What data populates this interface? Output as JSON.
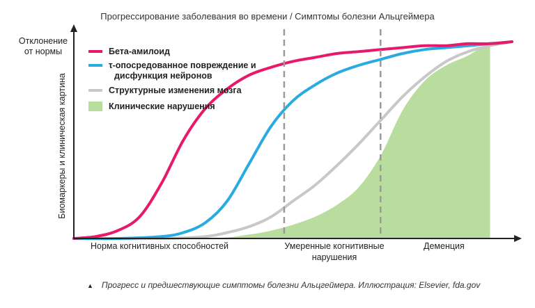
{
  "chart_data": {
    "type": "line",
    "title": "Прогрессирование заболевания во времени / Симптомы болезни Альцгеймера",
    "y_top_label": "Отклонение от нормы",
    "ylabel": "Биомаркеры и клиническая картина",
    "x_stage_labels": [
      "Норма когнитивных способностей",
      "Умеренные когнитивные нарушения",
      "Деменция"
    ],
    "xlim": [
      0,
      100
    ],
    "ylim": [
      0,
      100
    ],
    "stage_boundaries": [
      48,
      70
    ],
    "grid": false,
    "legend_position": "top-left",
    "series": [
      {
        "name": "Бета-амилоид",
        "kind": "line",
        "color": "#e8196b",
        "x": [
          0,
          5,
          10,
          15,
          20,
          25,
          30,
          35,
          40,
          45,
          50,
          55,
          60,
          65,
          70,
          75,
          80,
          85,
          90,
          95,
          100
        ],
        "y": [
          0,
          1,
          4,
          11,
          28,
          50,
          66,
          76,
          83,
          87,
          90,
          92,
          94,
          95,
          96,
          97,
          98,
          98,
          99,
          99,
          100
        ]
      },
      {
        "name": "τ-опосредованное повреждение и дисфункция нейронов",
        "kind": "line",
        "color": "#29aae1",
        "x": [
          0,
          10,
          20,
          25,
          30,
          35,
          40,
          45,
          50,
          55,
          60,
          65,
          70,
          75,
          80,
          85,
          90,
          95,
          100
        ],
        "y": [
          0,
          0,
          1,
          3,
          8,
          19,
          38,
          57,
          70,
          78,
          84,
          88,
          91,
          94,
          96,
          97,
          98,
          99,
          100
        ]
      },
      {
        "name": "Структурные изменения мозга",
        "kind": "line",
        "color": "#c8c8c8",
        "x": [
          0,
          20,
          30,
          35,
          40,
          45,
          50,
          55,
          60,
          65,
          70,
          75,
          80,
          85,
          90,
          95,
          100
        ],
        "y": [
          0,
          0,
          1,
          3,
          6,
          11,
          19,
          27,
          37,
          48,
          60,
          72,
          82,
          90,
          95,
          98,
          100
        ]
      },
      {
        "name": "Клинические нарушения",
        "kind": "area",
        "color": "#b9dd9f",
        "x": [
          0,
          30,
          40,
          45,
          50,
          55,
          60,
          65,
          70,
          75,
          80,
          85,
          90,
          95
        ],
        "y": [
          0,
          0,
          2,
          4,
          7,
          11,
          17,
          26,
          42,
          65,
          80,
          88,
          93,
          100
        ]
      }
    ]
  },
  "caption": {
    "marker": "▲",
    "text": "Прогресс и предшествующие симптомы болезни Альцгеймера. Иллюстрация: Elsevier, fda.gov"
  }
}
